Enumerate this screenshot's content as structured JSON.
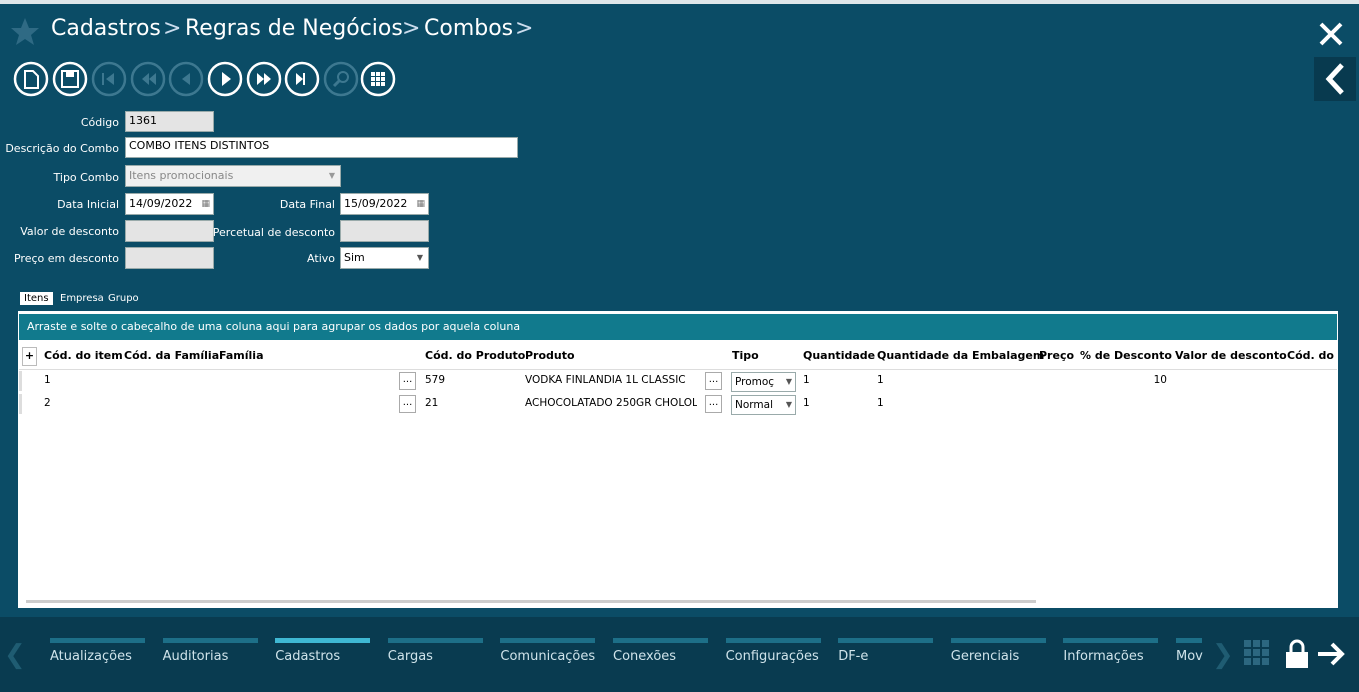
{
  "breadcrumb": [
    "Cadastros",
    "Regras de Negócios",
    "Combos"
  ],
  "form": {
    "codigo": {
      "label": "Código",
      "value": "1361"
    },
    "descricao": {
      "label": "Descrição do Combo",
      "value": "COMBO ITENS DISTINTOS"
    },
    "tipo_combo": {
      "label": "Tipo Combo",
      "value": "Itens promocionais"
    },
    "data_inicial": {
      "label": "Data Inicial",
      "value": "14/09/2022"
    },
    "data_final": {
      "label": "Data Final",
      "value": "15/09/2022"
    },
    "valor_desconto": {
      "label": "Valor de desconto"
    },
    "percentual_desconto": {
      "label": "Percetual de desconto"
    },
    "preco_desconto": {
      "label": "Preço em desconto"
    },
    "ativo": {
      "label": "Ativo",
      "value": "Sim"
    }
  },
  "tabs": [
    "Itens",
    "Empresa",
    "Grupo"
  ],
  "grid": {
    "group_hint": "Arraste e solte o cabeçalho de uma coluna aqui para agrupar os dados por aquela coluna",
    "columns": [
      "Cód. do item",
      "Cód. da Família",
      "Família",
      "Cód. do Produto",
      "Produto",
      "Tipo",
      "Quantidade",
      "Quantidade da Embalagem",
      "Preço",
      "% de Desconto",
      "Valor de desconto",
      "Cód. do P"
    ],
    "rows": [
      [
        "1",
        "579",
        "VODKA FINLANDIA 1L CLASSIC",
        "Promoç",
        "1",
        "1",
        "10"
      ],
      [
        "2",
        "21",
        "ACHOCOLATADO 250GR CHOLOL",
        "Normal",
        "1",
        "1",
        null
      ]
    ]
  },
  "nav": [
    "Atualizações",
    "Auditorias",
    "Cadastros",
    "Cargas",
    "Comunicações",
    "Conexões",
    "Configurações",
    "DF-e",
    "Gerenciais",
    "Informações",
    "Mov"
  ]
}
